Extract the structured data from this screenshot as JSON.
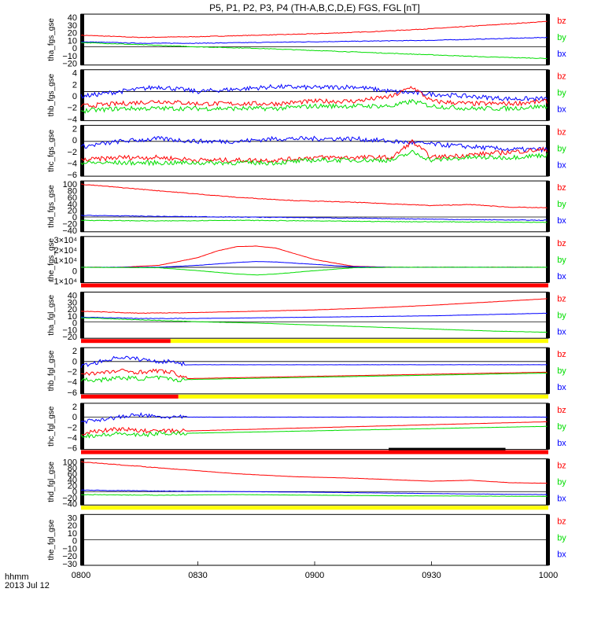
{
  "chart_data": {
    "type": "line",
    "title": "P5, P1, P2, P3, P4 (TH-A,B,C,D,E) FGS, FGL [nT]",
    "x_label_line1": "hhmm",
    "x_label_line2": "2013 Jul 12",
    "x_range": [
      "08:00",
      "10:00"
    ],
    "x_ticks": [
      "0800",
      "0830",
      "0900",
      "0930",
      "1000"
    ],
    "component_colors": {
      "bx": "#0000ff",
      "by": "#00dd00",
      "bz": "#ff0000"
    },
    "flag_colors": {
      "red": "#ff0000",
      "yellow": "#ffff00",
      "black": "#000000"
    },
    "panels": [
      {
        "ylabel": "tha_fgs_gse",
        "ylim": [
          -25,
          45
        ],
        "ticks": [
          "40",
          "30",
          "20",
          "10",
          "0",
          "−10",
          "−20"
        ],
        "legend": [
          "bz",
          "by",
          "bx"
        ],
        "series": [
          {
            "name": "bz",
            "x": [
              0,
              15,
              30,
              45,
              60,
              75,
              90,
              105,
              120
            ],
            "y": [
              16,
              13,
              14,
              16,
              18,
              21,
              25,
              30,
              35
            ]
          },
          {
            "name": "bx",
            "x": [
              0,
              15,
              30,
              45,
              60,
              75,
              90,
              105,
              120
            ],
            "y": [
              7,
              5,
              5,
              6,
              7,
              8,
              9,
              11,
              13
            ]
          },
          {
            "name": "by",
            "x": [
              0,
              15,
              30,
              45,
              60,
              75,
              90,
              105,
              120
            ],
            "y": [
              6,
              3,
              0,
              -2,
              -5,
              -8,
              -11,
              -14,
              -16
            ]
          }
        ]
      },
      {
        "ylabel": "thb_fgs_gse",
        "ylim": [
          -6,
          4.5
        ],
        "ticks": [
          "4",
          "2",
          "0",
          "−2",
          "−4"
        ],
        "legend": [
          "bz",
          "by",
          "bx"
        ],
        "series": [
          {
            "name": "bx",
            "x": [
              0,
              10,
              20,
              30,
              40,
              50,
              60,
              70,
              80,
              90,
              100,
              110,
              120
            ],
            "y": [
              -1,
              0,
              1,
              0,
              0.5,
              1,
              0.8,
              1,
              0,
              -0.5,
              -1,
              -1.5,
              -1.5
            ]
          },
          {
            "name": "bz",
            "x": [
              0,
              10,
              20,
              30,
              40,
              50,
              60,
              70,
              80,
              85,
              90,
              100,
              110,
              120
            ],
            "y": [
              -3,
              -2.5,
              -2,
              -2.5,
              -2.5,
              -2.5,
              -2,
              -2,
              -1,
              1,
              -2,
              -2.5,
              -2.5,
              -2
            ]
          },
          {
            "name": "by",
            "x": [
              0,
              10,
              20,
              30,
              40,
              50,
              60,
              70,
              80,
              85,
              90,
              100,
              110,
              120
            ],
            "y": [
              -4,
              -3.5,
              -3.5,
              -3.5,
              -3.5,
              -3.5,
              -3,
              -3,
              -3,
              -2,
              -3,
              -3.5,
              -3.5,
              -3
            ]
          }
        ]
      },
      {
        "ylabel": "thc_fgs_gse",
        "ylim": [
          -6.5,
          3
        ],
        "ticks": [
          "2",
          "0",
          "−2",
          "−4",
          "−6"
        ],
        "legend": [
          "bz",
          "by",
          "bx"
        ],
        "series": [
          {
            "name": "bx",
            "x": [
              0,
              10,
              20,
              30,
              40,
              50,
              60,
              70,
              80,
              90,
              100,
              110,
              120
            ],
            "y": [
              -1,
              0,
              0.5,
              0,
              0,
              0.5,
              0.5,
              0.5,
              0,
              -0.5,
              -1,
              -1.5,
              -1.5
            ]
          },
          {
            "name": "bz",
            "x": [
              0,
              10,
              20,
              30,
              40,
              50,
              60,
              70,
              80,
              85,
              90,
              100,
              110,
              120
            ],
            "y": [
              -3.5,
              -3,
              -3,
              -3.5,
              -3.5,
              -3.5,
              -3,
              -3,
              -3,
              0,
              -3,
              -2.5,
              -2,
              -1.5
            ]
          },
          {
            "name": "by",
            "x": [
              0,
              10,
              20,
              30,
              40,
              50,
              60,
              70,
              80,
              85,
              90,
              100,
              110,
              120
            ],
            "y": [
              -4,
              -4,
              -4,
              -4,
              -4,
              -4,
              -3.5,
              -3.5,
              -3.5,
              -2,
              -3.5,
              -3,
              -3,
              -2.5
            ]
          }
        ]
      },
      {
        "ylabel": "thd_fgs_gse",
        "ylim": [
          -45,
          110
        ],
        "ticks": [
          "100",
          "80",
          "60",
          "40",
          "20",
          "0",
          "−20",
          "−40"
        ],
        "legend": [
          "bz",
          "by",
          "bx"
        ],
        "series": [
          {
            "name": "bz",
            "x": [
              0,
              20,
              40,
              55,
              70,
              80,
              90,
              100,
              110,
              120
            ],
            "y": [
              100,
              80,
              60,
              50,
              45,
              40,
              35,
              38,
              30,
              28
            ]
          },
          {
            "name": "bx",
            "x": [
              0,
              20,
              40,
              60,
              80,
              100,
              120
            ],
            "y": [
              5,
              2,
              0,
              -2,
              -5,
              -8,
              -10
            ]
          },
          {
            "name": "by",
            "x": [
              0,
              20,
              40,
              60,
              80,
              100,
              120
            ],
            "y": [
              -10,
              -12,
              -10,
              -12,
              -14,
              -15,
              -16
            ]
          }
        ]
      },
      {
        "ylabel": "the_fgs_gse",
        "ylim": [
          -16000,
          32000
        ],
        "ticks": [
          "3×10⁴",
          "2×10⁴",
          "1×10⁴",
          "0",
          "−1×10⁴"
        ],
        "legend": [
          "bz",
          "by",
          "bx"
        ],
        "flags": [
          {
            "color": "red",
            "x0": 0,
            "x1": 120
          }
        ],
        "series": [
          {
            "name": "bz",
            "x": [
              0,
              10,
              20,
              30,
              35,
              40,
              45,
              50,
              55,
              60,
              70,
              80,
              90,
              120
            ],
            "y": [
              0,
              0,
              2000,
              10000,
              17000,
              21500,
              22000,
              20000,
              14000,
              8000,
              1000,
              0,
              0,
              0
            ]
          },
          {
            "name": "bx",
            "x": [
              0,
              20,
              30,
              40,
              45,
              50,
              60,
              70,
              80,
              90,
              120
            ],
            "y": [
              0,
              0,
              2000,
              5000,
              6000,
              5500,
              3000,
              500,
              0,
              0,
              0
            ]
          },
          {
            "name": "by",
            "x": [
              0,
              20,
              30,
              40,
              45,
              50,
              60,
              70,
              80,
              90,
              120
            ],
            "y": [
              0,
              -500,
              -3500,
              -7000,
              -8000,
              -7000,
              -3500,
              -500,
              0,
              0,
              0
            ]
          }
        ]
      },
      {
        "ylabel": "tha_fgl_gse",
        "ylim": [
          -25,
          45
        ],
        "ticks": [
          "40",
          "30",
          "20",
          "10",
          "0",
          "−10",
          "−20"
        ],
        "legend": [
          "bz",
          "by",
          "bx"
        ],
        "flags": [
          {
            "color": "red",
            "x0": 0,
            "x1": 23
          },
          {
            "color": "yellow",
            "x0": 23,
            "x1": 120
          }
        ],
        "series": [
          {
            "name": "bz",
            "x": [
              0,
              15,
              30,
              45,
              60,
              75,
              90,
              105,
              120
            ],
            "y": [
              16,
              13,
              14,
              16,
              18,
              21,
              25,
              30,
              35
            ]
          },
          {
            "name": "bx",
            "x": [
              0,
              15,
              30,
              45,
              60,
              75,
              90,
              105,
              120
            ],
            "y": [
              7,
              5,
              5,
              6,
              7,
              8,
              9,
              11,
              13
            ]
          },
          {
            "name": "by",
            "x": [
              0,
              15,
              30,
              45,
              60,
              75,
              90,
              105,
              120
            ],
            "y": [
              6,
              3,
              0,
              -2,
              -5,
              -8,
              -11,
              -14,
              -16
            ]
          }
        ]
      },
      {
        "ylabel": "thb_fgl_gse",
        "ylim": [
          -7,
          3
        ],
        "ticks": [
          "2",
          "0",
          "−2",
          "−4",
          "−6"
        ],
        "legend": [
          "bz",
          "by",
          "bx"
        ],
        "flags": [
          {
            "color": "red",
            "x0": 0,
            "x1": 25
          },
          {
            "color": "yellow",
            "x0": 25,
            "x1": 120
          }
        ],
        "series": [
          {
            "name": "bx",
            "x": [
              0,
              5,
              10,
              15,
              20,
              24,
              27,
              120
            ],
            "y": [
              -1,
              0,
              1,
              0.5,
              0,
              0,
              -0.7,
              -0.7
            ]
          },
          {
            "name": "bz",
            "x": [
              0,
              5,
              10,
              15,
              20,
              24,
              27,
              120
            ],
            "y": [
              -2.5,
              -2.5,
              -2,
              -2.3,
              -2,
              -2.5,
              -3.7,
              -2.3
            ]
          },
          {
            "name": "by",
            "x": [
              0,
              5,
              10,
              15,
              20,
              24,
              27,
              120
            ],
            "y": [
              -4,
              -4,
              -3.5,
              -3.7,
              -3.5,
              -4,
              -3.9,
              -2.5
            ]
          }
        ]
      },
      {
        "ylabel": "thc_fgl_gse",
        "ylim": [
          -7,
          3
        ],
        "ticks": [
          "2",
          "0",
          "−2",
          "−4",
          "−6"
        ],
        "legend": [
          "bz",
          "by",
          "bx"
        ],
        "flags": [
          {
            "color": "red",
            "x0": 0,
            "x1": 120
          },
          {
            "color": "black",
            "x0": 79,
            "x1": 109,
            "row": "upper"
          }
        ],
        "series": [
          {
            "name": "bx",
            "x": [
              0,
              5,
              10,
              15,
              20,
              24,
              27,
              120
            ],
            "y": [
              -1,
              -0.5,
              0,
              0.5,
              0,
              0,
              0,
              0
            ]
          },
          {
            "name": "bz",
            "x": [
              0,
              5,
              10,
              15,
              20,
              24,
              27,
              120
            ],
            "y": [
              -3.5,
              -3,
              -2.5,
              -3,
              -3,
              -3,
              -3,
              -1
            ]
          },
          {
            "name": "by",
            "x": [
              0,
              5,
              10,
              15,
              20,
              24,
              27,
              120
            ],
            "y": [
              -4,
              -4,
              -3.5,
              -4,
              -3.5,
              -3.5,
              -3.5,
              -2
            ]
          }
        ]
      },
      {
        "ylabel": "thd_fgl_gse",
        "ylim": [
          -45,
          110
        ],
        "ticks": [
          "100",
          "80",
          "60",
          "40",
          "20",
          "0",
          "−20",
          "−40"
        ],
        "legend": [
          "bz",
          "by",
          "bx"
        ],
        "flags": [
          {
            "color": "yellow",
            "x0": 0,
            "x1": 120
          }
        ],
        "series": [
          {
            "name": "bz",
            "x": [
              0,
              20,
              40,
              55,
              70,
              80,
              90,
              100,
              110,
              120
            ],
            "y": [
              100,
              80,
              60,
              50,
              45,
              40,
              35,
              38,
              30,
              28
            ]
          },
          {
            "name": "bx",
            "x": [
              0,
              20,
              40,
              60,
              80,
              100,
              120
            ],
            "y": [
              5,
              2,
              0,
              -2,
              -5,
              -8,
              -10
            ]
          },
          {
            "name": "by",
            "x": [
              0,
              20,
              40,
              60,
              80,
              100,
              120
            ],
            "y": [
              -10,
              -12,
              -10,
              -12,
              -14,
              -15,
              -16
            ]
          }
        ]
      },
      {
        "ylabel": "the_fgl_gse",
        "ylim": [
          -35,
          35
        ],
        "ticks": [
          "30",
          "20",
          "10",
          "0",
          "−10",
          "−20",
          "−30"
        ],
        "legend": [
          "bz",
          "by",
          "bx"
        ],
        "series": []
      }
    ]
  }
}
